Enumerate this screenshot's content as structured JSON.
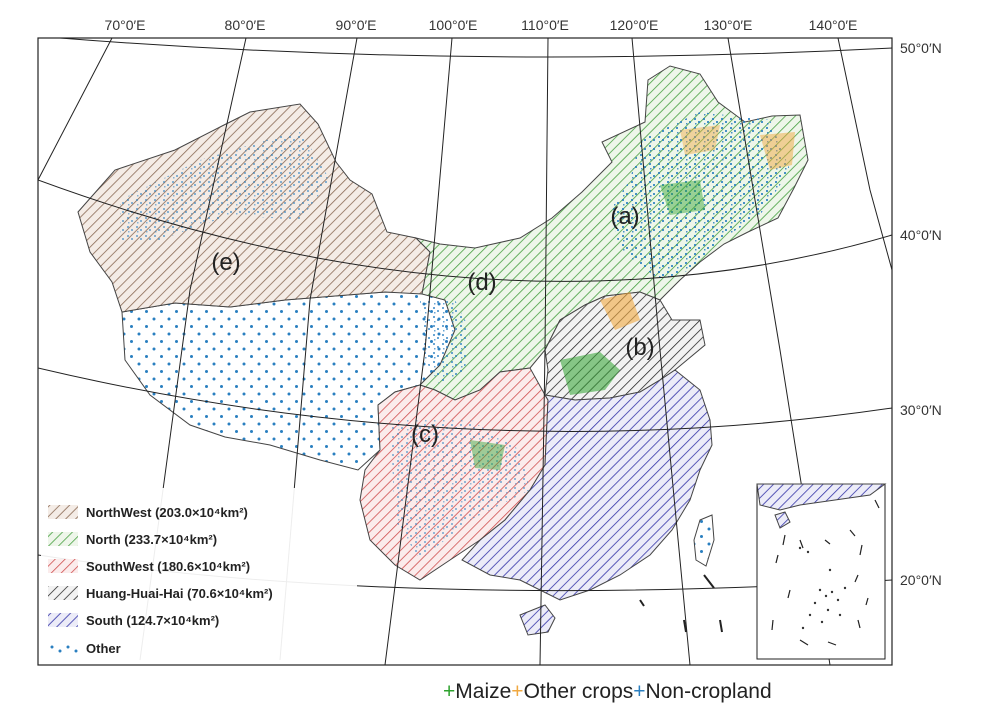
{
  "map": {
    "longitude_labels": [
      "70°0′E",
      "80°0′E",
      "90°0′E",
      "100°0′E",
      "110°0′E",
      "120°0′E",
      "130°0′E",
      "140°0′E"
    ],
    "latitude_labels": [
      "50°0′N",
      "40°0′N",
      "30°0′N",
      "20°0′N"
    ],
    "region_tags": [
      "(a)",
      "(b)",
      "(c)",
      "(d)",
      "(e)"
    ]
  },
  "legend": {
    "items": [
      {
        "label": "NorthWest (203.0×10⁴km²)",
        "color": "#8a6a55",
        "pattern": "hatch"
      },
      {
        "label": "North (233.7×10⁴km²)",
        "color": "#46a040",
        "pattern": "hatch"
      },
      {
        "label": "SouthWest  (180.6×10⁴km²)",
        "color": "#d05050",
        "pattern": "hatch"
      },
      {
        "label": "Huang-Huai-Hai (70.6×10⁴km²)",
        "color": "#222222",
        "pattern": "hatch"
      },
      {
        "label": "South (124.7×10⁴km²)",
        "color": "#3535a8",
        "pattern": "hatch"
      },
      {
        "label": "Other",
        "color": "#2a7fc0",
        "pattern": "dots"
      }
    ]
  },
  "class_legend": [
    {
      "symbol": "+",
      "label": "Maize",
      "color": "#2ea22e"
    },
    {
      "symbol": "+",
      "label": "Other crops",
      "color": "#f0a840"
    },
    {
      "symbol": "+",
      "label": "Non-cropland",
      "color": "#2a7fc0"
    }
  ]
}
